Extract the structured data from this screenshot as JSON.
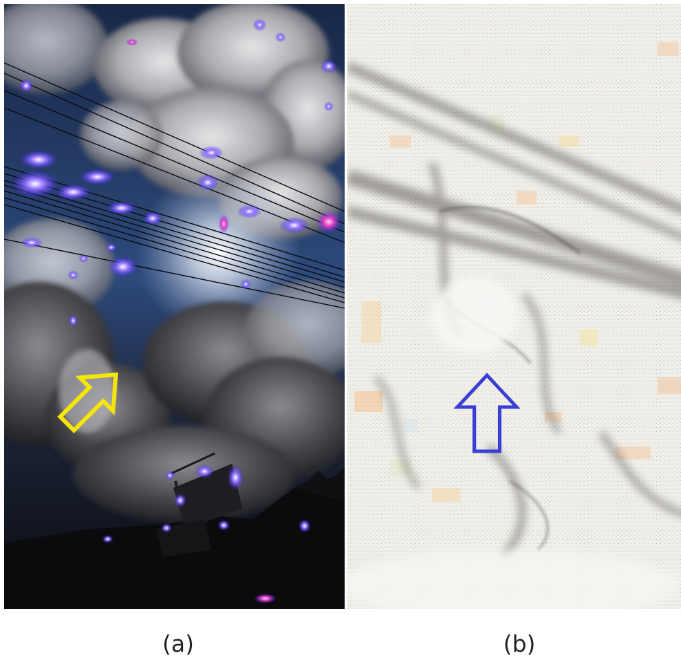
{
  "panels": [
    {
      "caption": "(a)",
      "arrow_color": "#f5e60a",
      "marker_color": "#6a4cff",
      "description_icon": "yellow-arrow-icon"
    },
    {
      "caption": "(b)",
      "arrow_color": "#3a3fd4",
      "description_icon": "blue-arrow-icon"
    }
  ],
  "colors": {
    "sky_deep": "#1b2a4a",
    "sky_mid": "#3c5a8c",
    "cloud_light": "#d9d9dc",
    "cloud_dark": "#3a3a3e",
    "ground": "#0b0b0d",
    "texture_bg": "#f3f2ee"
  }
}
